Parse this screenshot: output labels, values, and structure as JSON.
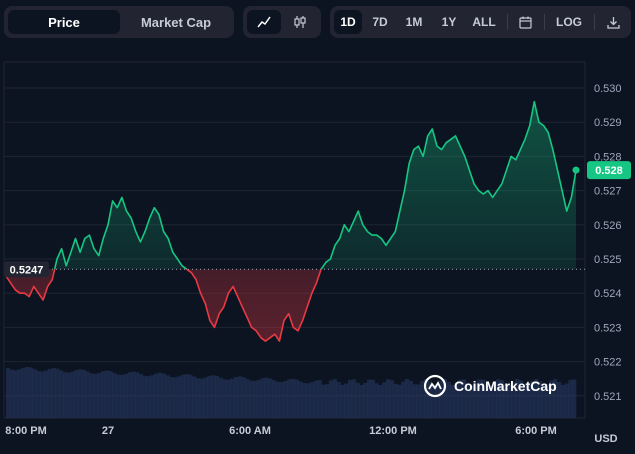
{
  "toolbar": {
    "price_label": "Price",
    "market_cap_label": "Market Cap",
    "ranges": [
      "1D",
      "7D",
      "1M",
      "1Y",
      "ALL"
    ],
    "log_label": "LOG"
  },
  "watermark": "CoinMarketCap",
  "colors": {
    "up": "#16c784",
    "down": "#ea3943",
    "bg": "#0d1421",
    "grid": "#1f2433"
  },
  "icons": [
    "line-chart-icon",
    "candlestick-icon",
    "calendar-icon",
    "download-icon",
    "coinmarketcap-logo-icon"
  ],
  "chart_data": {
    "type": "line",
    "currency_label": "USD",
    "y_ticks": [
      0.53,
      0.529,
      0.528,
      0.527,
      0.526,
      0.525,
      0.524,
      0.523,
      0.522,
      0.521
    ],
    "x_tick_labels": [
      "8:00 PM",
      "27",
      "6:00 AM",
      "12:00 PM",
      "6:00 PM"
    ],
    "reference_price": 0.5247,
    "reference_label": "0.5247",
    "current_price": 0.5276,
    "current_label": "0.528",
    "ylim": [
      0.5206,
      0.5306
    ],
    "series": [
      {
        "values": [
          0.5245,
          0.5243,
          0.5241,
          0.524,
          0.524,
          0.5239,
          0.5242,
          0.524,
          0.5238,
          0.5242,
          0.5244,
          0.525,
          0.5253,
          0.5248,
          0.5252,
          0.5256,
          0.5252,
          0.5256,
          0.5257,
          0.5253,
          0.5251,
          0.5256,
          0.526,
          0.5267,
          0.5265,
          0.5268,
          0.5264,
          0.5262,
          0.5258,
          0.5255,
          0.5258,
          0.5262,
          0.5265,
          0.5263,
          0.5258,
          0.5256,
          0.5252,
          0.525,
          0.5248,
          0.5247,
          0.5246,
          0.5244,
          0.524,
          0.5237,
          0.5232,
          0.523,
          0.5234,
          0.5236,
          0.524,
          0.5242,
          0.5239,
          0.5236,
          0.5233,
          0.523,
          0.5229,
          0.5227,
          0.5226,
          0.5227,
          0.5228,
          0.5226,
          0.5232,
          0.5234,
          0.523,
          0.5229,
          0.5232,
          0.5236,
          0.524,
          0.5243,
          0.5247,
          0.5249,
          0.525,
          0.5254,
          0.5256,
          0.526,
          0.5258,
          0.5261,
          0.5264,
          0.526,
          0.5258,
          0.5257,
          0.5257,
          0.5256,
          0.5254,
          0.5256,
          0.5258,
          0.5264,
          0.527,
          0.5278,
          0.5282,
          0.5283,
          0.528,
          0.5286,
          0.5288,
          0.5283,
          0.5282,
          0.5284,
          0.5285,
          0.5286,
          0.5283,
          0.528,
          0.5276,
          0.5272,
          0.527,
          0.5269,
          0.527,
          0.5268,
          0.527,
          0.5272,
          0.5276,
          0.528,
          0.5279,
          0.5282,
          0.5285,
          0.5289,
          0.5296,
          0.529,
          0.5289,
          0.5287,
          0.5282,
          0.5276,
          0.527,
          0.5264,
          0.5268,
          0.5276
        ]
      }
    ]
  }
}
